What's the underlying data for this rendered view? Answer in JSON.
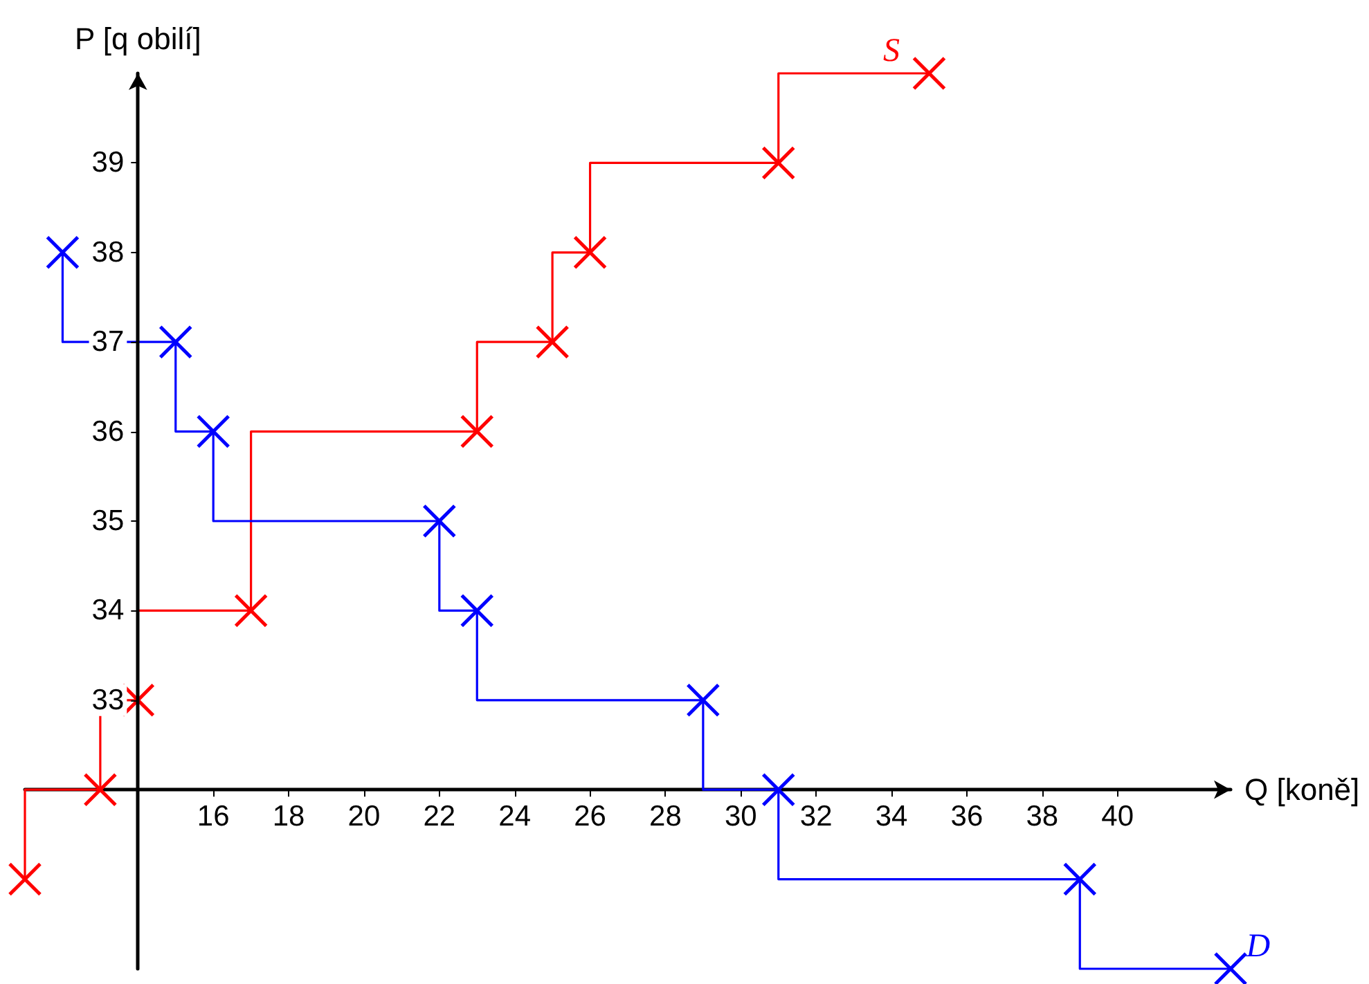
{
  "chart_data": {
    "type": "step",
    "xlabel": "Q [koně]",
    "ylabel": "P [q obilí]",
    "xlim": [
      11,
      43
    ],
    "ylim": [
      30,
      40
    ],
    "xticks": [
      16,
      18,
      20,
      22,
      24,
      26,
      28,
      30,
      32,
      34,
      36,
      38,
      40
    ],
    "yticks": [
      33,
      34,
      35,
      36,
      37,
      38,
      39
    ],
    "grid": false,
    "legend": false,
    "marker": "cross",
    "line_style": "solid",
    "series": [
      {
        "name": "S",
        "color": "#ff0000",
        "x": [
          11,
          13,
          14,
          17,
          23,
          25,
          26,
          31,
          35
        ],
        "values": [
          31,
          32,
          33,
          34,
          36,
          37,
          38,
          39,
          40
        ]
      },
      {
        "name": "D",
        "color": "#0000ff",
        "x": [
          12,
          15,
          16,
          22,
          23,
          29,
          31,
          39,
          43
        ],
        "values": [
          38,
          37,
          36,
          35,
          34,
          33,
          32,
          31,
          30
        ]
      }
    ]
  }
}
